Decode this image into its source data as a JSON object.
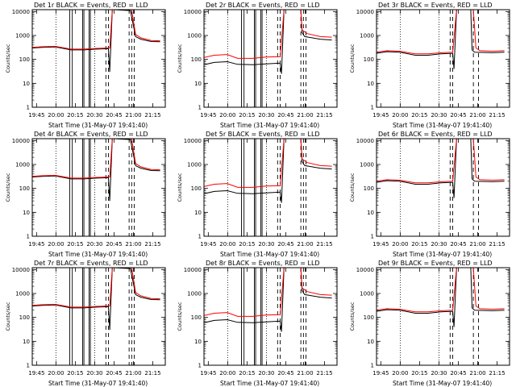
{
  "chart_data": [
    {
      "type": "line",
      "detector": "Det 1r",
      "title": "Det 1r BLACK = Events, RED = LLD",
      "variant": "a"
    },
    {
      "type": "line",
      "detector": "Det 2r",
      "title": "Det 2r BLACK = Events, RED = LLD",
      "variant": "b"
    },
    {
      "type": "line",
      "detector": "Det 3r",
      "title": "Det 3r BLACK = Events, RED = LLD",
      "variant": "c"
    },
    {
      "type": "line",
      "detector": "Det 4r",
      "title": "Det 4r BLACK = Events, RED = LLD",
      "variant": "a"
    },
    {
      "type": "line",
      "detector": "Det 5r",
      "title": "Det 5r BLACK = Events, RED = LLD",
      "variant": "b"
    },
    {
      "type": "line",
      "detector": "Det 6r",
      "title": "Det 6r BLACK = Events, RED = LLD",
      "variant": "c"
    },
    {
      "type": "line",
      "detector": "Det 7r",
      "title": "Det 7r BLACK = Events, RED = LLD",
      "variant": "a"
    },
    {
      "type": "line",
      "detector": "Det 8r",
      "title": "Det 8r BLACK = Events, RED = LLD",
      "variant": "b"
    },
    {
      "type": "line",
      "detector": "Det 9r",
      "title": "Det 9r BLACK = Events, RED = LLD",
      "variant": "c"
    }
  ],
  "shared": {
    "xlabel": "Start Time (31-May-07 19:41:40)",
    "ylabel": "Counts/sec",
    "x_ticks": [
      "19:45",
      "20:00",
      "20:15",
      "20:30",
      "20:45",
      "21:00",
      "21:15"
    ],
    "x_tick_minutes": [
      3.33,
      18.33,
      33.33,
      48.33,
      63.33,
      78.33,
      93.33
    ],
    "x_range_minutes": [
      0,
      103
    ],
    "y_scale": "log",
    "ylim": [
      1,
      12000
    ],
    "y_ticks": [
      "1",
      "10",
      "100",
      "1000",
      "10000"
    ],
    "y_tick_values": [
      1,
      10,
      100,
      1000,
      10000
    ],
    "series": [
      {
        "name": "Events",
        "color": "#000000"
      },
      {
        "name": "LLD",
        "color": "#ff0000"
      }
    ],
    "profiles": {
      "a": {
        "black": [
          [
            0,
            300
          ],
          [
            8,
            320
          ],
          [
            18,
            330
          ],
          [
            30,
            250
          ],
          [
            40,
            250
          ],
          [
            50,
            270
          ],
          [
            59,
            280
          ],
          [
            60,
            30
          ],
          [
            62,
            12000
          ],
          [
            63,
            12000
          ],
          [
            76,
            11000
          ],
          [
            77,
            6000
          ],
          [
            80,
            900
          ],
          [
            84,
            700
          ],
          [
            92,
            560
          ],
          [
            99,
            550
          ]
        ],
        "red": [
          [
            0,
            320
          ],
          [
            8,
            340
          ],
          [
            18,
            350
          ],
          [
            30,
            270
          ],
          [
            40,
            270
          ],
          [
            50,
            290
          ],
          [
            59,
            300
          ],
          [
            60,
            300
          ],
          [
            62,
            12000
          ],
          [
            77,
            12000
          ],
          [
            80,
            1100
          ],
          [
            84,
            800
          ],
          [
            92,
            620
          ],
          [
            99,
            600
          ]
        ],
        "solid": [
          29,
          31,
          39,
          40,
          44,
          45
        ],
        "dashed": [
          57,
          59,
          75,
          77,
          79
        ],
        "dotted": [
          18.33,
          48.33
        ]
      },
      "b": {
        "black": [
          [
            0,
            60
          ],
          [
            8,
            75
          ],
          [
            18,
            80
          ],
          [
            26,
            62
          ],
          [
            38,
            60
          ],
          [
            48,
            65
          ],
          [
            59,
            70
          ],
          [
            60,
            25
          ],
          [
            62,
            12000
          ],
          [
            75,
            12000
          ],
          [
            76,
            1300
          ],
          [
            78,
            900
          ],
          [
            90,
            700
          ],
          [
            99,
            650
          ]
        ],
        "red": [
          [
            0,
            120
          ],
          [
            8,
            150
          ],
          [
            18,
            160
          ],
          [
            26,
            110
          ],
          [
            38,
            110
          ],
          [
            48,
            125
          ],
          [
            59,
            130
          ],
          [
            62,
            12000
          ],
          [
            75,
            12000
          ],
          [
            76,
            1700
          ],
          [
            80,
            1200
          ],
          [
            90,
            900
          ],
          [
            99,
            850
          ]
        ],
        "solid": [
          29,
          31,
          39,
          40,
          44,
          45
        ],
        "dashed": [
          57,
          59,
          75,
          77,
          79
        ],
        "dotted": [
          18.33,
          48.33
        ]
      },
      "c": {
        "black": [
          [
            0,
            180
          ],
          [
            8,
            210
          ],
          [
            18,
            200
          ],
          [
            30,
            150
          ],
          [
            40,
            150
          ],
          [
            50,
            170
          ],
          [
            59,
            180
          ],
          [
            60,
            40
          ],
          [
            62,
            12000
          ],
          [
            73,
            12000
          ],
          [
            74,
            250
          ],
          [
            76,
            200
          ],
          [
            90,
            190
          ],
          [
            99,
            200
          ]
        ],
        "red": [
          [
            0,
            200
          ],
          [
            8,
            230
          ],
          [
            18,
            220
          ],
          [
            30,
            170
          ],
          [
            40,
            170
          ],
          [
            50,
            190
          ],
          [
            59,
            200
          ],
          [
            62,
            12000
          ],
          [
            75,
            12000
          ],
          [
            77,
            300
          ],
          [
            80,
            230
          ],
          [
            90,
            220
          ],
          [
            99,
            230
          ]
        ],
        "solid": [],
        "dashed": [
          57,
          59,
          75,
          79
        ],
        "dotted": [
          18.33,
          48.33
        ]
      }
    }
  }
}
